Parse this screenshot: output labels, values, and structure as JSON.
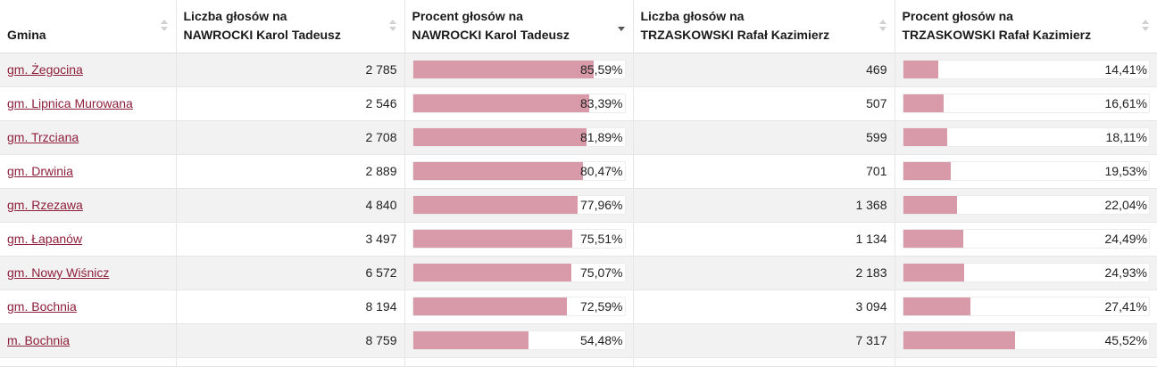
{
  "table": {
    "headers": [
      {
        "line1": "Gmina",
        "line2": "",
        "sort": "none"
      },
      {
        "line1": "Liczba głosów na",
        "line2": "NAWROCKI Karol Tadeusz",
        "sort": "none"
      },
      {
        "line1": "Procent głosów na",
        "line2": "NAWROCKI Karol Tadeusz",
        "sort": "desc"
      },
      {
        "line1": "Liczba głosów na",
        "line2": "TRZASKOWSKI Rafał Kazimierz",
        "sort": "none"
      },
      {
        "line1": "Procent głosów na",
        "line2": "TRZASKOWSKI Rafał Kazimierz",
        "sort": "none"
      }
    ],
    "rows": [
      {
        "gmina": "gm. Żegocina",
        "n_votes": "2 785",
        "n_pct": "85,59%",
        "n_frac": 0.8559,
        "t_votes": "469",
        "t_pct": "14,41%",
        "t_frac": 0.1441
      },
      {
        "gmina": "gm. Lipnica Murowana",
        "n_votes": "2 546",
        "n_pct": "83,39%",
        "n_frac": 0.8339,
        "t_votes": "507",
        "t_pct": "16,61%",
        "t_frac": 0.1661
      },
      {
        "gmina": "gm. Trzciana",
        "n_votes": "2 708",
        "n_pct": "81,89%",
        "n_frac": 0.8189,
        "t_votes": "599",
        "t_pct": "18,11%",
        "t_frac": 0.1811
      },
      {
        "gmina": "gm. Drwinia",
        "n_votes": "2 889",
        "n_pct": "80,47%",
        "n_frac": 0.8047,
        "t_votes": "701",
        "t_pct": "19,53%",
        "t_frac": 0.1953
      },
      {
        "gmina": "gm. Rzezawa",
        "n_votes": "4 840",
        "n_pct": "77,96%",
        "n_frac": 0.7796,
        "t_votes": "1 368",
        "t_pct": "22,04%",
        "t_frac": 0.2204
      },
      {
        "gmina": "gm. Łapanów",
        "n_votes": "3 497",
        "n_pct": "75,51%",
        "n_frac": 0.7551,
        "t_votes": "1 134",
        "t_pct": "24,49%",
        "t_frac": 0.2449
      },
      {
        "gmina": "gm. Nowy Wiśnicz",
        "n_votes": "6 572",
        "n_pct": "75,07%",
        "n_frac": 0.7507,
        "t_votes": "2 183",
        "t_pct": "24,93%",
        "t_frac": 0.2493
      },
      {
        "gmina": "gm. Bochnia",
        "n_votes": "8 194",
        "n_pct": "72,59%",
        "n_frac": 0.7259,
        "t_votes": "3 094",
        "t_pct": "27,41%",
        "t_frac": 0.2741
      },
      {
        "gmina": "m. Bochnia",
        "n_votes": "8 759",
        "n_pct": "54,48%",
        "n_frac": 0.5448,
        "t_votes": "7 317",
        "t_pct": "45,52%",
        "t_frac": 0.4552
      }
    ]
  },
  "colors": {
    "bar_fill": "#d89aa8",
    "link": "#8e1f3a",
    "row_stripe": "#f2f2f2"
  }
}
